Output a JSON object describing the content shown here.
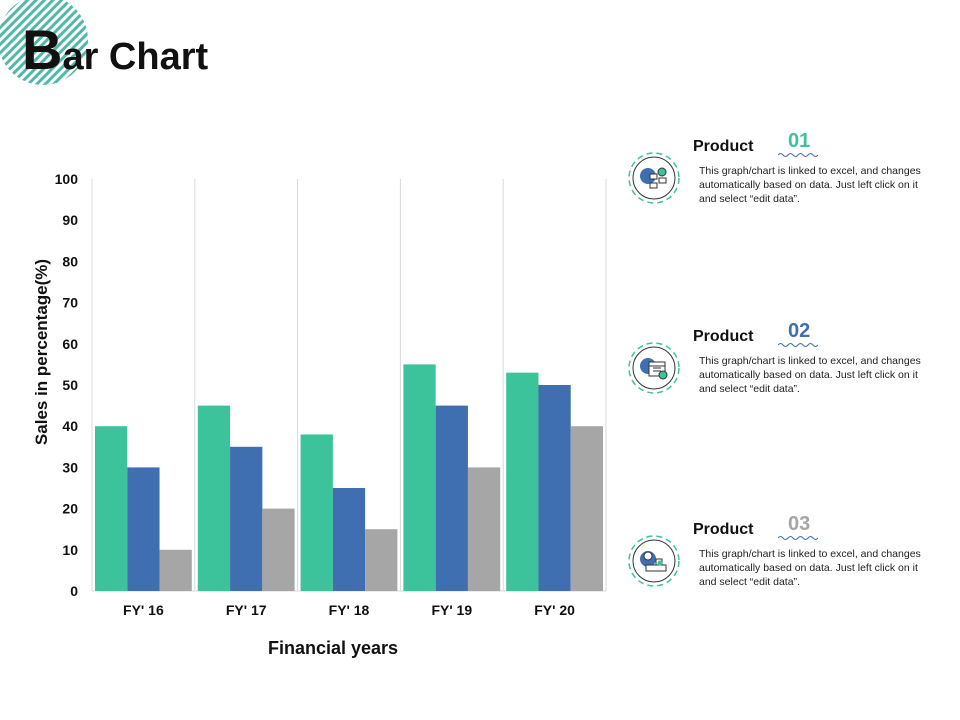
{
  "page": {
    "title_initial": "B",
    "title_rest": "ar Chart"
  },
  "chart_data": {
    "type": "bar",
    "categories": [
      "FY' 16",
      "FY' 17",
      "FY' 18",
      "FY' 19",
      "FY' 20"
    ],
    "series": [
      {
        "name": "Product 01",
        "color": "#3cc39c",
        "values": [
          40,
          45,
          38,
          55,
          53
        ]
      },
      {
        "name": "Product 02",
        "color": "#3f6fb0",
        "values": [
          30,
          35,
          25,
          45,
          50
        ]
      },
      {
        "name": "Product 03",
        "color": "#a6a6a6",
        "values": [
          10,
          20,
          15,
          30,
          40
        ]
      }
    ],
    "ylim": [
      0,
      100
    ],
    "yticks": [
      0,
      10,
      20,
      30,
      40,
      50,
      60,
      70,
      80,
      90,
      100
    ],
    "xlabel": "Financial years",
    "ylabel": "Sales in percentage(%)",
    "grid": "vertical separators"
  },
  "products": [
    {
      "label": "Product",
      "number": "01",
      "number_color": "#3cc39c",
      "icon": "flowchart-gear-icon",
      "description": "This graph/chart is linked to excel, and changes automatically based on data. Just left click on it and select “edit data”."
    },
    {
      "label": "Product",
      "number": "02",
      "number_color": "#3f6fb0",
      "icon": "calendar-clock-icon",
      "description": "This graph/chart is linked to excel, and changes automatically based on data. Just left click on it and select “edit data”."
    },
    {
      "label": "Product",
      "number": "03",
      "number_color": "#a6a6a6",
      "icon": "desk-clock-icon",
      "description": "This graph/chart is linked to excel, and changes automatically based on data. Just left click on it and select “edit data”."
    }
  ]
}
